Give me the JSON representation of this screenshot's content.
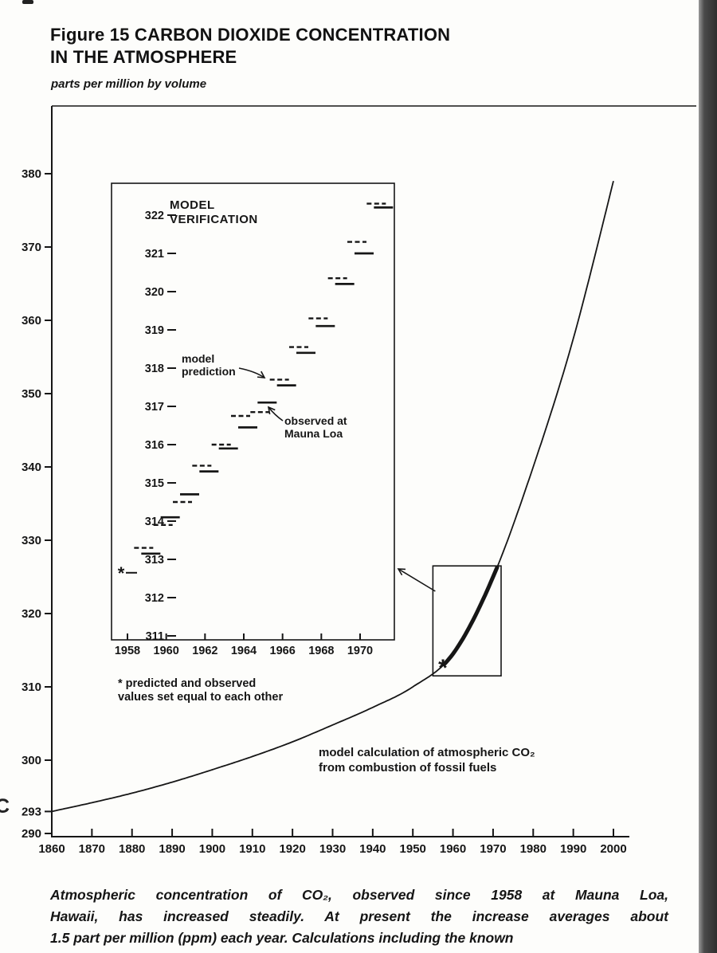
{
  "page": {
    "stray_mark_left": "C",
    "ink_color": "#161616",
    "scan_strip_color": "#2e2e2e"
  },
  "header": {
    "title_lines": [
      "Figure 15 CARBON DIOXIDE CONCENTRATION",
      "IN THE ATMOSPHERE"
    ]
  },
  "caption_lines": [
    "Atmospheric concentration of CO₂, observed since 1958 at Mauna Loa,",
    "Hawaii, has increased steadily. At present the increase averages about",
    "1.5 part per million (ppm) each year. Calculations including the known"
  ],
  "chart_data": [
    {
      "id": "main-co2-projection",
      "type": "line",
      "title": "Figure 15 Carbon Dioxide Concentration in the Atmosphere",
      "xlabel": "",
      "ylabel": "parts per million by volume",
      "xlim": [
        1860,
        2000
      ],
      "ylim": [
        290,
        382
      ],
      "grid": false,
      "legend": "none",
      "x_ticks": [
        1860,
        1870,
        1880,
        1890,
        1900,
        1910,
        1920,
        1930,
        1940,
        1950,
        1960,
        1970,
        1980,
        1990,
        2000
      ],
      "y_ticks": [
        290,
        293,
        300,
        310,
        320,
        330,
        340,
        350,
        360,
        370,
        380
      ],
      "series": [
        {
          "name": "model calculation of atmospheric CO₂ from combustion of fossil fuels",
          "x": [
            1860,
            1870,
            1880,
            1890,
            1900,
            1910,
            1920,
            1930,
            1940,
            1950,
            1960,
            1970,
            1980,
            1990,
            2000
          ],
          "y": [
            293,
            294.2,
            295.5,
            297,
            298.7,
            300.5,
            302.5,
            304.8,
            307.2,
            310,
            314.5,
            325,
            340,
            357.5,
            379
          ]
        }
      ],
      "observed_segment": {
        "name": "Mauna Loa observed record (thick segment)",
        "x_start": 1958,
        "x_end": 1971
      },
      "asterisk": {
        "x": 1957.5,
        "y": 312.7
      },
      "highlight_box": {
        "x0": 1955,
        "x1": 1972,
        "y0": 311.5,
        "y1": 326.5
      },
      "annotation_lines": [
        "model calculation of atmospheric CO₂",
        "from combustion of fossil fuels"
      ]
    },
    {
      "id": "inset-model-verification",
      "type": "line",
      "title": "MODEL VERIFICATION",
      "title_lines": [
        "MODEL",
        "VERIFICATION"
      ],
      "xlim": [
        1957.3,
        1971.8
      ],
      "ylim": [
        311,
        322.9
      ],
      "grid": false,
      "x_ticks": [
        1958,
        1960,
        1962,
        1964,
        1966,
        1968,
        1970
      ],
      "y_ticks": [
        311,
        312,
        313,
        314,
        315,
        316,
        317,
        318,
        319,
        320,
        321,
        322
      ],
      "years": [
        1959,
        1960,
        1961,
        1962,
        1963,
        1964,
        1965,
        1966,
        1967,
        1968,
        1969,
        1970,
        1971
      ],
      "series": [
        {
          "name": "observed at Mauna Loa",
          "style": "solid",
          "values": [
            313.15,
            314.1,
            314.7,
            315.3,
            315.9,
            316.45,
            317.1,
            317.55,
            318.4,
            319.1,
            320.2,
            321.0,
            322.2
          ]
        },
        {
          "name": "model prediction",
          "style": "dashed",
          "values": [
            313.3,
            313.9,
            314.5,
            315.45,
            316.0,
            316.75,
            316.85,
            317.7,
            318.55,
            319.3,
            320.35,
            321.3,
            322.3
          ]
        }
      ],
      "asterisk": {
        "x": 1958,
        "y": 312.65
      },
      "labels": {
        "model_prediction_lines": [
          "model",
          "prediction"
        ],
        "observed_lines": [
          "observed at",
          "Mauna Loa"
        ]
      },
      "footnote_lines": [
        "* predicted and observed",
        "values set equal to each other"
      ]
    }
  ]
}
